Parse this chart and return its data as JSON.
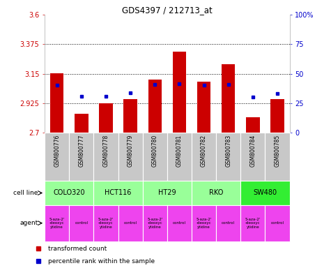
{
  "title": "GDS4397 / 212713_at",
  "samples": [
    "GSM800776",
    "GSM800777",
    "GSM800778",
    "GSM800779",
    "GSM800780",
    "GSM800781",
    "GSM800782",
    "GSM800783",
    "GSM800784",
    "GSM800785"
  ],
  "bar_values": [
    3.155,
    2.845,
    2.925,
    2.955,
    3.105,
    3.32,
    3.09,
    3.22,
    2.82,
    2.955
  ],
  "dot_values": [
    3.065,
    2.975,
    2.975,
    3.005,
    3.07,
    3.075,
    3.065,
    3.07,
    2.972,
    3.0
  ],
  "ymin": 2.7,
  "ymax": 3.6,
  "yticks": [
    2.7,
    2.925,
    3.15,
    3.375,
    3.6
  ],
  "ytick_labels": [
    "2.7",
    "2.925",
    "3.15",
    "3.375",
    "3.6"
  ],
  "right_yticks_pct": [
    0,
    25,
    50,
    75,
    100
  ],
  "right_ytick_labels": [
    "0",
    "25",
    "50",
    "75",
    "100%"
  ],
  "dotted_lines": [
    2.925,
    3.15,
    3.375
  ],
  "bar_color": "#cc0000",
  "dot_color": "#0000cc",
  "bar_width": 0.55,
  "tick_bg_color": "#c8c8c8",
  "cell_line_color_light": "#99ff99",
  "cell_line_color_bright": "#33ee33",
  "agent_color": "#ee44ee",
  "cell_lines": [
    {
      "name": "COLO320",
      "start": 0,
      "end": 2
    },
    {
      "name": "HCT116",
      "start": 2,
      "end": 4
    },
    {
      "name": "HT29",
      "start": 4,
      "end": 6
    },
    {
      "name": "RKO",
      "start": 6,
      "end": 8
    },
    {
      "name": "SW480",
      "start": 8,
      "end": 10
    }
  ],
  "agent_labels": [
    "5-aza-2'\n-deoxyc\nytidine",
    "control",
    "5-aza-2'\n-deoxyc\nytidine",
    "control",
    "5-aza-2'\n-deoxyc\nytidine",
    "control",
    "5-aza-2'\n-deoxyc\nytidine",
    "control",
    "5-aza-2'\n-deoxyc\nytidine",
    "control"
  ],
  "legend_red": "transformed count",
  "legend_blue": "percentile rank within the sample",
  "xlabel_color": "#cc0000",
  "right_ylabel_color": "#0000cc"
}
